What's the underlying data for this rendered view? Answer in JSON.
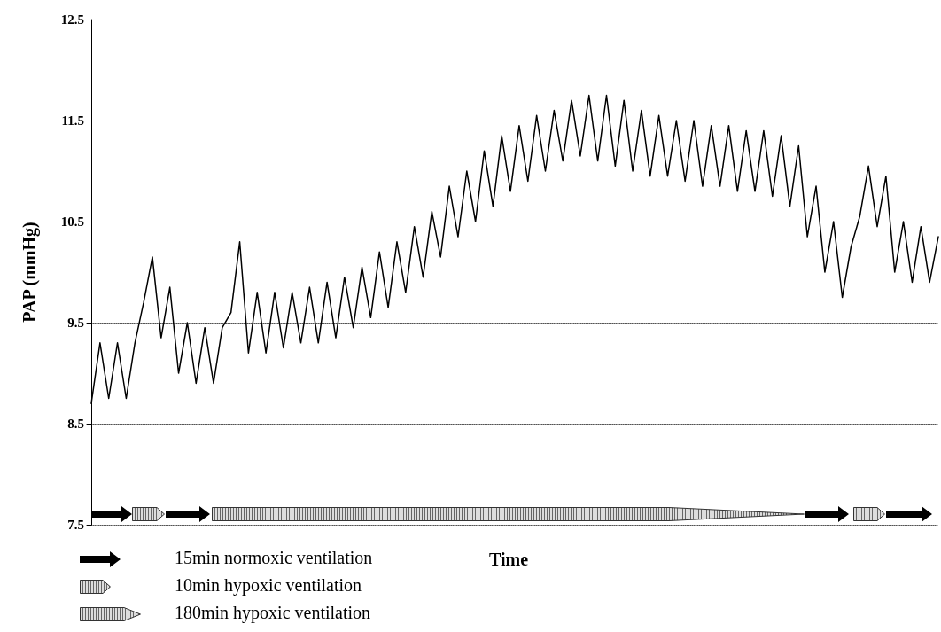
{
  "chart_data": {
    "type": "line",
    "xlabel": "Time",
    "ylabel": "PAP (mmHg)",
    "categories": [
      null,
      null,
      null,
      null,
      null,
      null,
      null,
      null,
      null,
      null,
      null,
      null,
      null,
      null,
      null,
      null,
      null,
      null,
      null,
      null,
      null,
      null,
      null,
      null,
      null,
      null,
      null,
      null,
      null,
      null,
      null,
      null,
      null,
      null,
      null,
      null,
      null,
      null,
      null,
      null,
      null,
      null,
      null,
      null,
      null,
      null,
      null,
      null,
      null,
      null,
      null,
      null,
      null,
      null,
      null,
      null,
      null,
      null,
      null,
      null,
      null,
      null,
      null,
      null,
      null,
      null,
      null,
      null,
      null,
      null,
      null,
      null,
      null,
      null,
      null,
      null,
      null,
      null,
      null,
      null,
      null,
      null,
      null,
      null,
      null,
      null,
      null,
      null,
      null,
      null,
      null,
      null,
      null,
      null,
      null,
      null,
      null,
      null
    ],
    "series": [
      {
        "color": "#000000",
        "values": [
          8.7,
          9.3,
          8.75,
          9.3,
          8.75,
          9.3,
          9.7,
          10.15,
          9.35,
          9.85,
          9.0,
          9.5,
          8.9,
          9.45,
          8.9,
          9.45,
          9.6,
          10.3,
          9.2,
          9.8,
          9.2,
          9.8,
          9.25,
          9.8,
          9.3,
          9.85,
          9.3,
          9.9,
          9.35,
          9.95,
          9.45,
          10.05,
          9.55,
          10.2,
          9.65,
          10.3,
          9.8,
          10.45,
          9.95,
          10.6,
          10.15,
          10.85,
          10.35,
          11.0,
          10.5,
          11.2,
          10.65,
          11.35,
          10.8,
          11.45,
          10.9,
          11.55,
          11.0,
          11.6,
          11.1,
          11.7,
          11.15,
          11.75,
          11.1,
          11.75,
          11.05,
          11.7,
          11.0,
          11.6,
          10.95,
          11.55,
          10.95,
          11.5,
          10.9,
          11.5,
          10.85,
          11.45,
          10.85,
          11.45,
          10.8,
          11.4,
          10.8,
          11.4,
          10.75,
          11.35,
          10.65,
          11.25,
          10.35,
          10.85,
          10.0,
          10.5,
          9.75,
          10.25,
          10.55,
          11.05,
          10.45,
          10.95,
          10.0,
          10.5,
          9.9,
          10.45,
          9.9,
          10.35
        ]
      }
    ],
    "ylim": [
      7.5,
      12.5
    ],
    "yticks": [
      7.5,
      8.5,
      9.5,
      10.5,
      11.5,
      12.5
    ],
    "grid": "y",
    "marker": "none",
    "annotations": [
      "15min normoxic ventilation",
      "10min hypoxic ventilation",
      "180min hypoxic ventilation"
    ]
  }
}
